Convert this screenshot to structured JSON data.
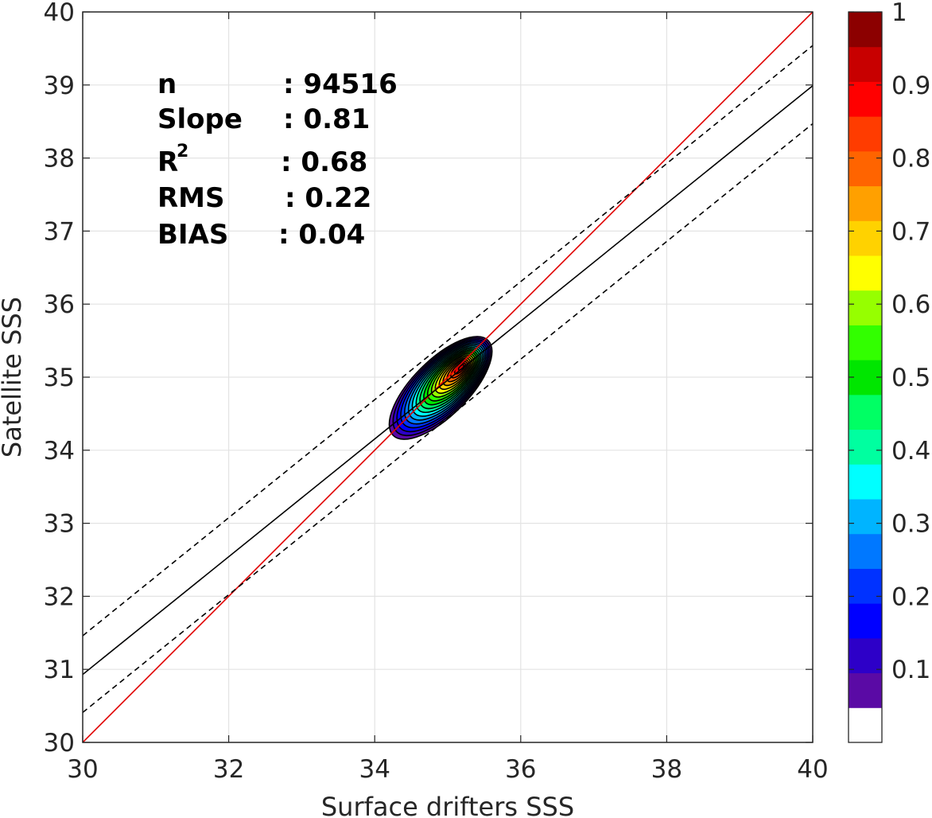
{
  "chart_data": {
    "type": "density-contour",
    "xlabel": "Surface drifters SSS",
    "ylabel": "Satellite SSS",
    "xlim": [
      30,
      40
    ],
    "ylim": [
      30,
      40
    ],
    "xticks": [
      "30",
      "32",
      "34",
      "36",
      "38",
      "40"
    ],
    "yticks": [
      "30",
      "31",
      "32",
      "33",
      "34",
      "35",
      "36",
      "37",
      "38",
      "39",
      "40"
    ],
    "grid": true,
    "stats": {
      "n_label": "n",
      "n_value": ": 94516",
      "slope_label": "Slope",
      "slope_value": ": 0.81",
      "r2_label": "R",
      "r2_sup": "2",
      "r2_value": ": 0.68",
      "rms_label": "RMS",
      "rms_value": ": 0.22",
      "bias_label": "BIAS",
      "bias_value": ": 0.04"
    },
    "lines": [
      {
        "kind": "identity",
        "color": "#e00000",
        "dash": "solid",
        "x": [
          30,
          40
        ],
        "y": [
          30,
          40
        ]
      },
      {
        "kind": "fit",
        "color": "#000000",
        "dash": "solid",
        "x": [
          30,
          40
        ],
        "y": [
          30.93,
          38.99
        ]
      },
      {
        "kind": "fit_upper",
        "color": "#000000",
        "dash": "dashed",
        "x": [
          30,
          40
        ],
        "y": [
          31.46,
          39.54
        ]
      },
      {
        "kind": "fit_lower",
        "color": "#000000",
        "dash": "dashed",
        "x": [
          30,
          40
        ],
        "y": [
          30.41,
          38.47
        ]
      }
    ],
    "density": {
      "peak": [
        35.2,
        35.15
      ],
      "angle_deg": 45,
      "semi_major": 0.92,
      "semi_minor": 0.38,
      "peak_offset_toward_upper_right": 0.42
    },
    "colorbar": {
      "ticks": [
        "0.1",
        "0.2",
        "0.3",
        "0.4",
        "0.5",
        "0.6",
        "0.7",
        "0.8",
        "0.9",
        "1"
      ],
      "range": [
        0,
        1
      ],
      "colors": [
        "#ffffff",
        "#5a0aa5",
        "#2d00c8",
        "#0000ff",
        "#0032ff",
        "#0078ff",
        "#00b4ff",
        "#00ffff",
        "#00ffa0",
        "#00ff64",
        "#00e600",
        "#32ff00",
        "#96ff00",
        "#ffff00",
        "#ffd200",
        "#ffa000",
        "#ff6400",
        "#ff3c00",
        "#ff0000",
        "#c80000",
        "#8c0000"
      ]
    }
  }
}
